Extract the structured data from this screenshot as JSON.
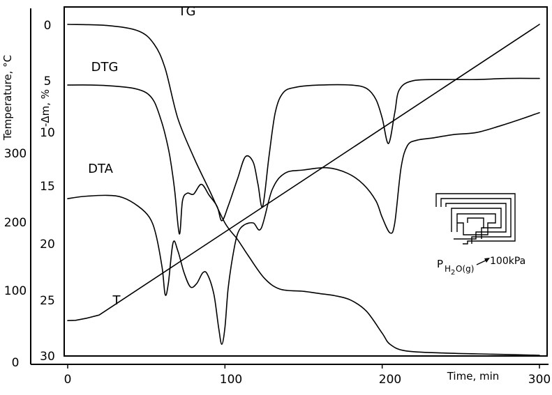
{
  "chart_data": {
    "type": "line",
    "xlabel": "Time, min",
    "x_ticks": [
      "0",
      "100",
      "200",
      "300"
    ],
    "xlim": [
      0,
      300
    ],
    "left_axis_outer": {
      "label": "Temperature, °C",
      "ticks": [
        "0",
        "100",
        "200",
        "300"
      ],
      "range": [
        0,
        400
      ]
    },
    "left_axis_inner": {
      "label": "-Δm, %",
      "ticks": [
        "0",
        "5",
        "10",
        "15",
        "20",
        "25",
        "30"
      ],
      "range": [
        0,
        30
      ],
      "inverted": true
    },
    "series": [
      {
        "name": "TG",
        "axis": "left_axis_inner",
        "points": [
          [
            0,
            0
          ],
          [
            25,
            0.1
          ],
          [
            45,
            0.6
          ],
          [
            55,
            1.8
          ],
          [
            62,
            4
          ],
          [
            70,
            8.5
          ],
          [
            80,
            12
          ],
          [
            90,
            15
          ],
          [
            100,
            18
          ],
          [
            108,
            19.5
          ],
          [
            115,
            21
          ],
          [
            125,
            23
          ],
          [
            135,
            24
          ],
          [
            150,
            24.2
          ],
          [
            160,
            24.4
          ],
          [
            170,
            24.6
          ],
          [
            180,
            25
          ],
          [
            190,
            26
          ],
          [
            200,
            28
          ],
          [
            205,
            29
          ],
          [
            215,
            29.6
          ],
          [
            240,
            29.8
          ],
          [
            270,
            29.9
          ],
          [
            300,
            30
          ]
        ]
      },
      {
        "name": "DTG",
        "axis": "left_axis_inner",
        "points": [
          [
            0,
            5.5
          ],
          [
            15,
            5.5
          ],
          [
            30,
            5.6
          ],
          [
            42,
            5.8
          ],
          [
            50,
            6.2
          ],
          [
            55,
            7
          ],
          [
            59,
            8.5
          ],
          [
            62,
            10
          ],
          [
            65,
            12
          ],
          [
            68,
            15
          ],
          [
            71,
            19
          ],
          [
            73,
            16
          ],
          [
            76,
            15.3
          ],
          [
            80,
            15.4
          ],
          [
            85,
            14.5
          ],
          [
            90,
            15.5
          ],
          [
            95,
            16.5
          ],
          [
            98,
            17.8
          ],
          [
            102,
            16.5
          ],
          [
            108,
            14
          ],
          [
            113,
            12
          ],
          [
            118,
            12.5
          ],
          [
            121,
            14.5
          ],
          [
            124,
            16.5
          ],
          [
            128,
            12
          ],
          [
            132,
            8
          ],
          [
            137,
            6.2
          ],
          [
            145,
            5.7
          ],
          [
            160,
            5.5
          ],
          [
            180,
            5.5
          ],
          [
            190,
            5.8
          ],
          [
            196,
            6.8
          ],
          [
            200,
            8.5
          ],
          [
            204,
            10.8
          ],
          [
            208,
            8
          ],
          [
            211,
            5.9
          ],
          [
            220,
            5.1
          ],
          [
            240,
            5.0
          ],
          [
            260,
            5.0
          ],
          [
            280,
            4.9
          ],
          [
            300,
            4.9
          ]
        ]
      },
      {
        "name": "DTA",
        "axis": "left_axis_inner",
        "points": [
          [
            0,
            15.8
          ],
          [
            10,
            15.6
          ],
          [
            25,
            15.5
          ],
          [
            35,
            15.7
          ],
          [
            45,
            16.5
          ],
          [
            52,
            17.5
          ],
          [
            56,
            19
          ],
          [
            60,
            22
          ],
          [
            62,
            24.5
          ],
          [
            64,
            23.5
          ],
          [
            67,
            19.8
          ],
          [
            70,
            20.5
          ],
          [
            74,
            22.5
          ],
          [
            78,
            23.8
          ],
          [
            82,
            23.5
          ],
          [
            86,
            22.5
          ],
          [
            89,
            22.7
          ],
          [
            93,
            24.5
          ],
          [
            96,
            27.5
          ],
          [
            98,
            29
          ],
          [
            100,
            27.5
          ],
          [
            102,
            24
          ],
          [
            105,
            21
          ],
          [
            108,
            19
          ],
          [
            112,
            18.2
          ],
          [
            118,
            18
          ],
          [
            123,
            18.5
          ],
          [
            130,
            15
          ],
          [
            138,
            13.5
          ],
          [
            150,
            13.2
          ],
          [
            165,
            13.0
          ],
          [
            178,
            13.5
          ],
          [
            188,
            14.5
          ],
          [
            196,
            16
          ],
          [
            200,
            17.5
          ],
          [
            205,
            18.9
          ],
          [
            208,
            18
          ],
          [
            212,
            13
          ],
          [
            216,
            11
          ],
          [
            222,
            10.5
          ],
          [
            232,
            10.3
          ],
          [
            245,
            10
          ],
          [
            260,
            9.8
          ],
          [
            275,
            9.2
          ],
          [
            290,
            8.5
          ],
          [
            300,
            8
          ]
        ]
      },
      {
        "name": "T",
        "axis": "left_axis_outer",
        "points": [
          [
            0,
            27
          ],
          [
            5,
            27.4
          ],
          [
            12,
            30
          ],
          [
            20,
            34
          ],
          [
            300,
            400
          ]
        ]
      }
    ],
    "annotations": [
      "P",
      "H",
      "2",
      "O(g)",
      "100kPa"
    ]
  }
}
